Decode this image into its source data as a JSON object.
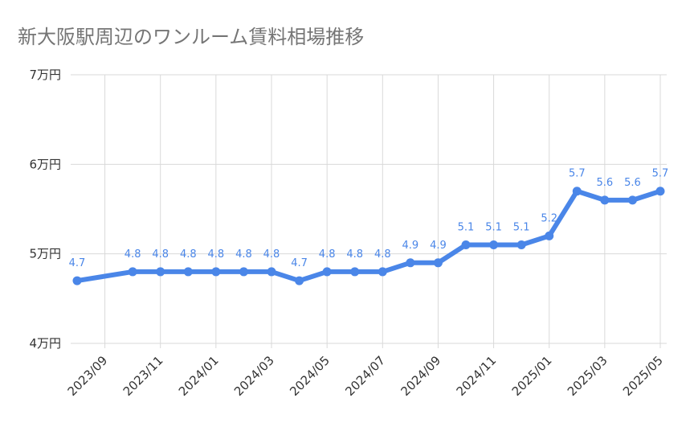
{
  "title": "新大阪駅周辺のワンルーム賃料相場推移",
  "chart_data": {
    "type": "line",
    "title": "新大阪駅周辺のワンルーム賃料相場推移",
    "xlabel": "",
    "ylabel": "",
    "ylim": [
      4,
      7
    ],
    "y_ticks": [
      {
        "value": 4,
        "label": "4万円"
      },
      {
        "value": 5,
        "label": "5万円"
      },
      {
        "value": 6,
        "label": "6万円"
      },
      {
        "value": 7,
        "label": "7万円"
      }
    ],
    "x_tick_labels": [
      "2023/09",
      "2023/11",
      "2024/01",
      "2024/03",
      "2024/05",
      "2024/07",
      "2024/09",
      "2024/11",
      "2025/01",
      "2025/03",
      "2025/05"
    ],
    "x": [
      "2023/08",
      "2023/10",
      "2023/11",
      "2023/12",
      "2024/01",
      "2024/02",
      "2024/03",
      "2024/04",
      "2024/05",
      "2024/06",
      "2024/07",
      "2024/08",
      "2024/09",
      "2024/10",
      "2024/11",
      "2024/12",
      "2025/01",
      "2025/02",
      "2025/03",
      "2025/04",
      "2025/05"
    ],
    "series": [
      {
        "name": "",
        "color": "#4a86e8",
        "values": [
          4.7,
          4.8,
          4.8,
          4.8,
          4.8,
          4.8,
          4.8,
          4.7,
          4.8,
          4.8,
          4.8,
          4.9,
          4.9,
          5.1,
          5.1,
          5.1,
          5.2,
          5.7,
          5.6,
          5.6,
          5.7
        ],
        "labels": [
          "4.7",
          "4.8",
          "4.8",
          "4.8",
          "4.8",
          "4.8",
          "4.8",
          "4.7",
          "4.8",
          "4.8",
          "4.8",
          "4.9",
          "4.9",
          "5.1",
          "5.1",
          "5.1",
          "5.2",
          "5.7",
          "5.6",
          "5.6",
          "5.7"
        ]
      }
    ],
    "grid": true,
    "legend": "none"
  }
}
